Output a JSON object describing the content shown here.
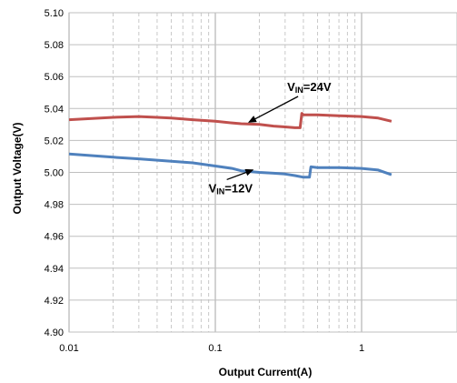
{
  "chart_data": {
    "type": "line",
    "xlabel": "Output Current(A)",
    "ylabel": "Output Voltage(V)",
    "x_scale": "log",
    "xlim": [
      0.01,
      1.6
    ],
    "ylim": [
      4.9,
      5.1
    ],
    "x_ticks": [
      "0.01",
      "0.1",
      "1"
    ],
    "y_ticks": [
      "4.90",
      "4.92",
      "4.94",
      "4.96",
      "4.98",
      "5.00",
      "5.02",
      "5.04",
      "5.06",
      "5.08",
      "5.10"
    ],
    "grid": true,
    "series": [
      {
        "name": "VIN=24V",
        "color": "#c0504d",
        "x": [
          0.01,
          0.02,
          0.03,
          0.04,
          0.05,
          0.07,
          0.1,
          0.13,
          0.15,
          0.2,
          0.25,
          0.3,
          0.35,
          0.38,
          0.39,
          0.4,
          0.5,
          0.7,
          1.0,
          1.3,
          1.6
        ],
        "y": [
          5.033,
          5.0345,
          5.035,
          5.0345,
          5.034,
          5.033,
          5.032,
          5.031,
          5.0305,
          5.03,
          5.029,
          5.0285,
          5.028,
          5.028,
          5.037,
          5.036,
          5.036,
          5.0355,
          5.035,
          5.034,
          5.032
        ]
      },
      {
        "name": "VIN=12V",
        "color": "#4f81bd",
        "x": [
          0.01,
          0.02,
          0.03,
          0.05,
          0.07,
          0.1,
          0.13,
          0.15,
          0.2,
          0.25,
          0.3,
          0.35,
          0.4,
          0.44,
          0.45,
          0.5,
          0.7,
          1.0,
          1.3,
          1.6
        ],
        "y": [
          5.0115,
          5.0095,
          5.0085,
          5.007,
          5.006,
          5.004,
          5.0025,
          5.001,
          5.0,
          4.9995,
          4.999,
          4.998,
          4.997,
          4.997,
          5.0035,
          5.003,
          5.003,
          5.0025,
          5.0015,
          4.9985
        ]
      }
    ],
    "annotations": [
      {
        "main": "V",
        "sub": "IN",
        "rest": "=24V",
        "x": 0.31,
        "y": 5.051,
        "arrow_to_x": 0.17,
        "arrow_to_y": 5.0315
      },
      {
        "main": "V",
        "sub": "IN",
        "rest": "=12V",
        "x": 0.09,
        "y": 4.9875,
        "arrow_to_x": 0.18,
        "arrow_to_y": 5.0015
      }
    ]
  }
}
